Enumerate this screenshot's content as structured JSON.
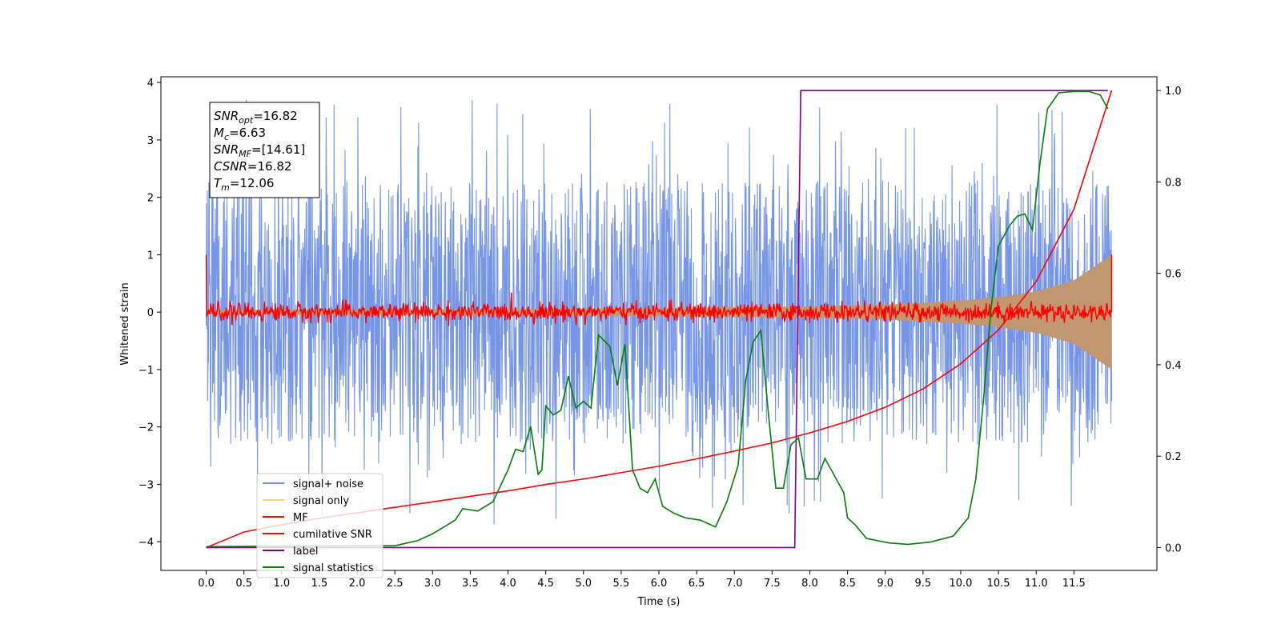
{
  "chart_data": {
    "type": "line",
    "xlabel": "Time (s)",
    "ylabel": "Whitened strain",
    "xlim": [
      -0.6,
      12.6
    ],
    "ylim": [
      -4.5,
      4.1
    ],
    "y2lim": [
      -0.05,
      1.03
    ],
    "x_ticks": [
      0.0,
      0.5,
      1.0,
      1.5,
      2.0,
      2.5,
      3.0,
      3.5,
      4.0,
      4.5,
      5.0,
      5.5,
      6.0,
      6.5,
      7.0,
      7.5,
      8.0,
      8.5,
      9.0,
      9.5,
      10.0,
      10.5,
      11.0,
      11.5
    ],
    "x_tick_labels": [
      "0.0",
      "0.5",
      "1.0",
      "1.5",
      "2.0",
      "2.5",
      "3.0",
      "3.5",
      "4.0",
      "4.5",
      "5.0",
      "5.5",
      "6.0",
      "6.5",
      "7.0",
      "7.5",
      "8.0",
      "8.5",
      "9.0",
      "9.5",
      "10.0",
      "10.5",
      "11.0",
      "11.5"
    ],
    "y_ticks": [
      4,
      3,
      2,
      1,
      0,
      -1,
      -2,
      -3,
      -4
    ],
    "y_tick_labels": [
      "4",
      "3",
      "2",
      "1",
      "0",
      "−1",
      "−2",
      "−3",
      "−4"
    ],
    "y2_ticks": [
      1.0,
      0.8,
      0.6,
      0.4,
      0.2,
      0.0
    ],
    "y2_tick_labels": [
      "1.0",
      "0.8",
      "0.6",
      "0.4",
      "0.2",
      "0.0"
    ],
    "grid": false,
    "legend_position": "lower-left",
    "series": [
      {
        "name": "signal+ noise",
        "color": "#6f8fe6",
        "axis": "left",
        "kind": "noise",
        "t_range": [
          0.0,
          12.0
        ],
        "typical_amplitude": 1.3,
        "extreme_range": [
          -4.1,
          3.8
        ]
      },
      {
        "name": "signal only",
        "color": "#c1976f",
        "axis": "left",
        "kind": "chirp-envelope",
        "t_range": [
          0.0,
          12.0
        ],
        "t_merge": 12.06,
        "envelope_t": [
          0.0,
          3.0,
          6.0,
          8.0,
          9.0,
          10.0,
          10.5,
          11.0,
          11.5,
          12.0
        ],
        "envelope_amp": [
          0.04,
          0.05,
          0.07,
          0.1,
          0.13,
          0.2,
          0.26,
          0.36,
          0.55,
          1.0
        ]
      },
      {
        "name": "MF",
        "color": "#ff0000",
        "axis": "left",
        "kind": "noise",
        "t_range": [
          0.0,
          12.0
        ],
        "typical_amplitude": 0.08,
        "edge_value": 1.0
      },
      {
        "name": "cumilative SNR",
        "color": "#ff0000",
        "axis": "right",
        "x": [
          0.0,
          0.5,
          1.0,
          1.5,
          2.0,
          2.5,
          3.0,
          3.5,
          4.0,
          4.5,
          5.0,
          5.5,
          6.0,
          6.5,
          7.0,
          7.5,
          8.0,
          8.5,
          9.0,
          9.5,
          10.0,
          10.5,
          11.0,
          11.5,
          12.0
        ],
        "y": [
          0.0,
          0.034,
          0.05,
          0.064,
          0.076,
          0.088,
          0.1,
          0.112,
          0.124,
          0.138,
          0.15,
          0.164,
          0.178,
          0.194,
          0.211,
          0.229,
          0.251,
          0.276,
          0.307,
          0.347,
          0.402,
          0.476,
          0.582,
          0.74,
          1.0
        ]
      },
      {
        "name": "label",
        "color": "#800080",
        "axis": "right",
        "x": [
          0.0,
          7.8,
          7.88,
          11.95
        ],
        "y": [
          0.0,
          0.0,
          1.0,
          1.0
        ]
      },
      {
        "name": "signal statistics",
        "color": "#008000",
        "axis": "right",
        "x": [
          0.0,
          1.0,
          2.0,
          2.5,
          2.8,
          3.0,
          3.3,
          3.4,
          3.6,
          3.8,
          4.0,
          4.1,
          4.2,
          4.3,
          4.4,
          4.45,
          4.5,
          4.6,
          4.7,
          4.8,
          4.9,
          5.0,
          5.1,
          5.2,
          5.35,
          5.45,
          5.55,
          5.65,
          5.75,
          5.85,
          5.95,
          6.05,
          6.2,
          6.35,
          6.55,
          6.75,
          6.9,
          7.05,
          7.15,
          7.25,
          7.35,
          7.45,
          7.55,
          7.65,
          7.75,
          7.85,
          7.95,
          8.1,
          8.2,
          8.3,
          8.45,
          8.5,
          8.6,
          8.75,
          8.9,
          9.05,
          9.3,
          9.6,
          9.9,
          10.1,
          10.2,
          10.3,
          10.4,
          10.5,
          10.65,
          10.75,
          10.85,
          10.95,
          11.05,
          11.15,
          11.3,
          11.5,
          11.7,
          11.85,
          11.95
        ],
        "y": [
          0.002,
          0.003,
          0.004,
          0.004,
          0.015,
          0.03,
          0.06,
          0.085,
          0.08,
          0.1,
          0.17,
          0.215,
          0.21,
          0.265,
          0.16,
          0.17,
          0.31,
          0.29,
          0.3,
          0.375,
          0.305,
          0.32,
          0.305,
          0.465,
          0.44,
          0.355,
          0.445,
          0.17,
          0.13,
          0.12,
          0.15,
          0.09,
          0.075,
          0.065,
          0.06,
          0.045,
          0.1,
          0.18,
          0.365,
          0.45,
          0.475,
          0.295,
          0.13,
          0.13,
          0.225,
          0.24,
          0.15,
          0.15,
          0.195,
          0.165,
          0.12,
          0.065,
          0.05,
          0.02,
          0.015,
          0.01,
          0.007,
          0.012,
          0.025,
          0.065,
          0.15,
          0.32,
          0.52,
          0.66,
          0.705,
          0.725,
          0.73,
          0.695,
          0.84,
          0.96,
          0.995,
          0.998,
          0.998,
          0.99,
          0.96
        ]
      }
    ],
    "annotation_lines": [
      {
        "label": "SNR",
        "sub": "opt",
        "value": "=16.82"
      },
      {
        "label": "M",
        "sub": "c",
        "value": "=6.63"
      },
      {
        "label": "SNR",
        "sub": "MF",
        "value": "=[14.61]"
      },
      {
        "label": "CSNR",
        "sub": "",
        "value": "=16.82"
      },
      {
        "label": "T",
        "sub": "m",
        "value": "=12.06"
      }
    ]
  }
}
